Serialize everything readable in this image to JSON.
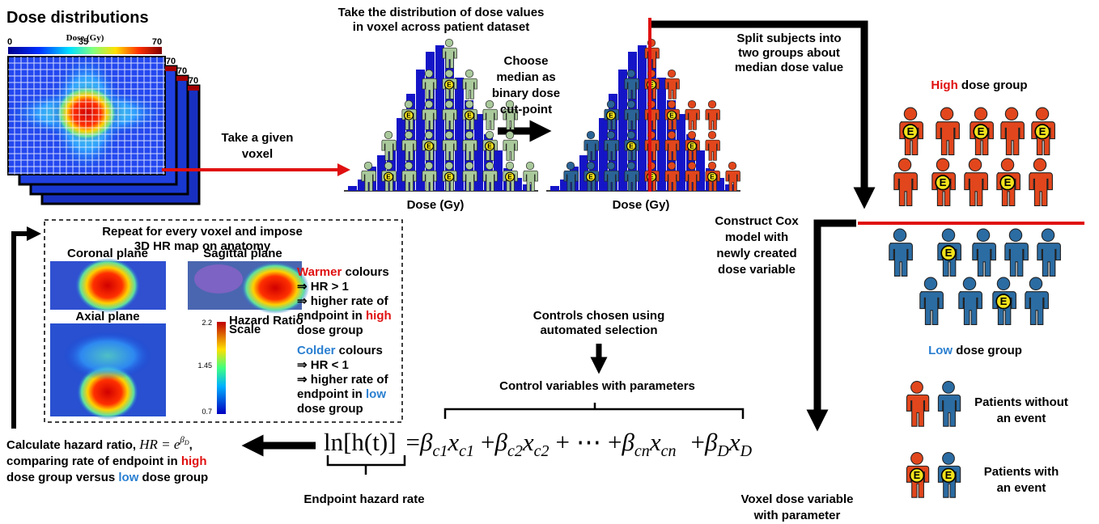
{
  "header": {
    "title": "Dose distributions"
  },
  "dose_map": {
    "colorbar_label": "Dose (Gy)",
    "colorbar_ticks": [
      "0",
      "35",
      "70"
    ],
    "slice_labels": [
      "70",
      "70",
      "70"
    ]
  },
  "steps": {
    "take_voxel": [
      "Take a given",
      "voxel"
    ],
    "distribution": [
      "Take the distribution of dose values",
      "in voxel across patient dataset"
    ],
    "histogram_axis_label": "Dose (Gy)",
    "choose_median": [
      "Choose",
      "median as",
      "binary dose",
      "cut-point"
    ],
    "split": [
      "Split subjects into",
      "two groups about",
      "median dose value"
    ],
    "construct_cox": [
      "Construct Cox",
      "model with",
      "newly created",
      "dose variable"
    ]
  },
  "groups": {
    "high": {
      "emphasis": "High",
      "rest": " dose group"
    },
    "low": {
      "emphasis": "Low",
      "rest": " dose group"
    },
    "event_marker": "E"
  },
  "legend": {
    "without_event": [
      "Patients without",
      "an event"
    ],
    "with_event": [
      "Patients with",
      "an event"
    ]
  },
  "hr_map": {
    "title": [
      "Repeat for every voxel and impose",
      "3D HR map on anatomy"
    ],
    "planes": [
      "Coronal plane",
      "Sagittal plane",
      "Axial plane"
    ],
    "scale_label": [
      "Hazard Ratio",
      "Scale"
    ],
    "scale_ticks": [
      "2.2",
      "1.45",
      "0.7"
    ],
    "warmer": {
      "head": "Warmer",
      "head_rest": " colours",
      "lines": [
        "⇒ HR > 1",
        "⇒ higher rate of"
      ],
      "endpoint": "endpoint in ",
      "group": "high",
      "tail": "dose group"
    },
    "colder": {
      "head": "Colder",
      "head_rest": " colours",
      "lines": [
        "⇒ HR < 1",
        "⇒ higher rate of"
      ],
      "endpoint": "endpoint in ",
      "group": "low",
      "tail": "dose group"
    }
  },
  "controls": {
    "note": [
      "Controls chosen using",
      "automated selection"
    ],
    "label": "Control variables with parameters"
  },
  "equation": {
    "lhs": "ln[h(t)]",
    "equals": "=",
    "plus": "+",
    "ellipsis": "⋯",
    "beta": "β",
    "x": "x",
    "subscripts": [
      "c1",
      "c2",
      "cn",
      "D"
    ]
  },
  "endpoint_label": "Endpoint hazard rate",
  "dose_variable_label": [
    "Voxel dose variable",
    "with parameter"
  ],
  "hazard_ratio": {
    "intro": "Calculate hazard ratio, ",
    "formula": "HR = e",
    "exp_beta": "β",
    "exp_sub": "D",
    "comma": ",",
    "line2": "comparing rate of endpoint in ",
    "high": "high",
    "line3": "dose group versus ",
    "low": "low",
    "line3_tail": " dose group"
  }
}
